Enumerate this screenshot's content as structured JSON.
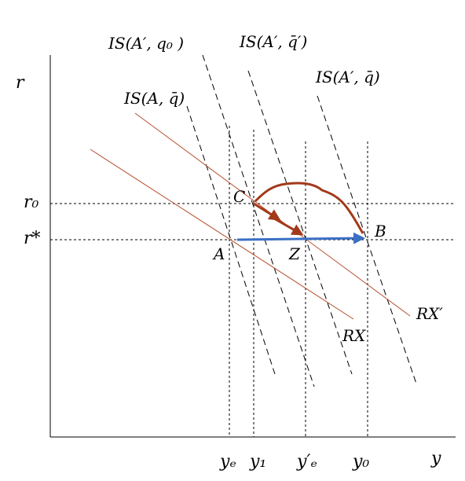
{
  "axes": {
    "x_label": "y",
    "y_label": "r"
  },
  "curves": {
    "is_a_q": "IS(A, q̄)",
    "is_a1_q0": "IS(A′, q₀ )",
    "is_a1_q1": "IS(A′, q̄′)",
    "is_a1_q": "IS(A′, q̄)",
    "rx": "RX",
    "rx1": "RX′"
  },
  "points": {
    "a": "A",
    "b": "B",
    "c": "C",
    "z": "Z"
  },
  "levels": {
    "r0": "r₀",
    "r_star": "r*",
    "ye": "yₑ",
    "y1": "y₁",
    "ye_prime": "y′ₑ",
    "y0": "y₀"
  },
  "colors": {
    "rx_lines": "#b5502e",
    "path_arrow": "#a23a1a",
    "blue_arrow": "#3b6fc4"
  }
}
